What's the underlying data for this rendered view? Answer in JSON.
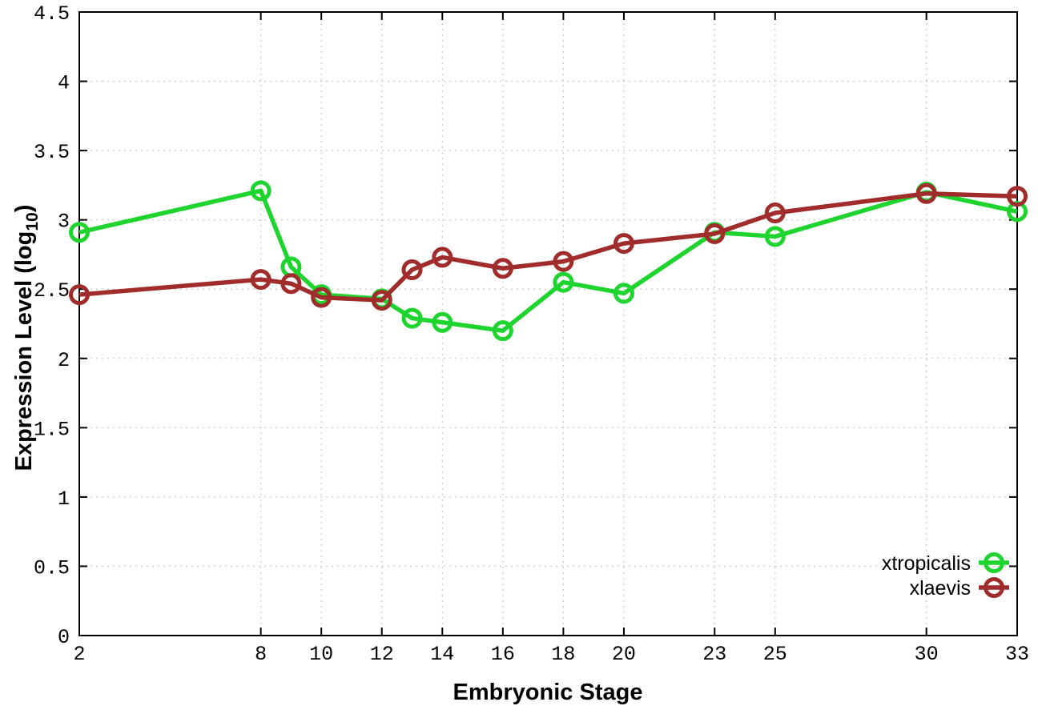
{
  "figure": {
    "background": "#ffffff",
    "x_label": "Embryonic Stage",
    "y_label_main": "Expression Level (log",
    "y_label_sub": "10",
    "y_label_close": ")"
  },
  "chart_data": {
    "type": "line",
    "title": "",
    "xlabel": "Embryonic Stage",
    "ylabel": "Expression Level (log10)",
    "x": [
      2,
      8,
      9,
      10,
      12,
      13,
      14,
      16,
      18,
      20,
      23,
      25,
      30,
      33
    ],
    "series": [
      {
        "name": "xtropicalis",
        "color": "#1fd42f",
        "values": [
          2.91,
          3.21,
          2.66,
          2.46,
          2.43,
          2.29,
          2.26,
          2.2,
          2.55,
          2.47,
          2.91,
          2.88,
          3.2,
          3.06
        ]
      },
      {
        "name": "xlaevis",
        "color": "#a02c2c",
        "values": [
          2.46,
          2.57,
          2.54,
          2.44,
          2.42,
          2.64,
          2.73,
          2.65,
          2.7,
          2.83,
          2.9,
          3.05,
          3.19,
          3.17
        ]
      }
    ],
    "xlim": [
      2,
      33
    ],
    "ylim": [
      0,
      4.5
    ],
    "x_ticks": [
      2,
      8,
      10,
      12,
      14,
      16,
      18,
      20,
      23,
      25,
      30,
      33
    ],
    "y_ticks": [
      0,
      0.5,
      1,
      1.5,
      2,
      2.5,
      3,
      3.5,
      4,
      4.5
    ],
    "y_tick_labels": [
      "0",
      "0.5",
      "1",
      "1.5",
      "2",
      "2.5",
      "3",
      "3.5",
      "4",
      "4.5"
    ],
    "grid": true,
    "grid_color": "#c8c8c8",
    "border_color": "#000000",
    "legend_position": "bottom-right",
    "marker": "open-circle"
  }
}
